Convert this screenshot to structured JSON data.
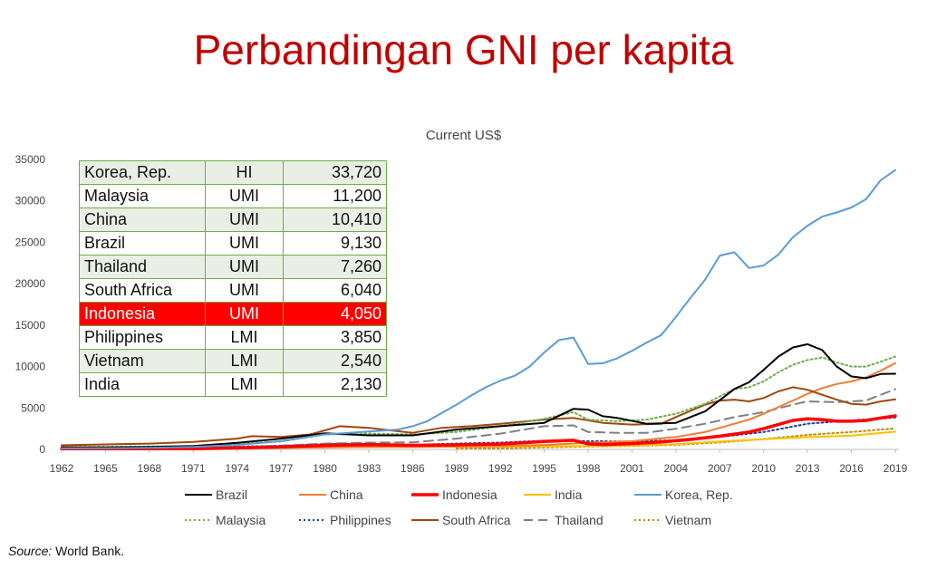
{
  "slide": {
    "title": "Perbandingan GNI per kapita",
    "source_label": "Source:",
    "source_text": " World Bank."
  },
  "table": [
    {
      "country": "Korea, Rep.",
      "group": "HI",
      "gni": "33,720",
      "highlight": false
    },
    {
      "country": "Malaysia",
      "group": "UMI",
      "gni": "11,200",
      "highlight": false
    },
    {
      "country": "China",
      "group": "UMI",
      "gni": "10,410",
      "highlight": false
    },
    {
      "country": "Brazil",
      "group": "UMI",
      "gni": "9,130",
      "highlight": false
    },
    {
      "country": "Thailand",
      "group": "UMI",
      "gni": "7,260",
      "highlight": false
    },
    {
      "country": "South Africa",
      "group": "UMI",
      "gni": "6,040",
      "highlight": false
    },
    {
      "country": "Indonesia",
      "group": "UMI",
      "gni": "4,050",
      "highlight": true
    },
    {
      "country": "Philippines",
      "group": "LMI",
      "gni": "3,850",
      "highlight": false
    },
    {
      "country": "Vietnam",
      "group": "LMI",
      "gni": "2,540",
      "highlight": false
    },
    {
      "country": "India",
      "group": "LMI",
      "gni": "2,130",
      "highlight": false
    }
  ],
  "chart_data": {
    "type": "line",
    "title": "Current US$",
    "xlabel": "",
    "ylabel": "",
    "xlim": [
      1962,
      2019
    ],
    "ylim": [
      0,
      35000
    ],
    "yticks": [
      0,
      5000,
      10000,
      15000,
      20000,
      25000,
      30000,
      35000
    ],
    "ytick_labels": [
      "0",
      "5000",
      "10000",
      "15000",
      "20000",
      "25000",
      "30000",
      "35000"
    ],
    "xtick_labels": [
      "1962",
      "1965",
      "1968",
      "1971",
      "1974",
      "1977",
      "1980",
      "1983",
      "1986",
      "1989",
      "1992",
      "1995",
      "1998",
      "2001",
      "2004",
      "2007",
      "2010",
      "2013",
      "2016",
      "2019"
    ],
    "grid": false,
    "legend_position": "bottom",
    "series": [
      {
        "name": "Brazil",
        "color": "#000000",
        "dash": "solid",
        "points": [
          [
            1962,
            260
          ],
          [
            1965,
            250
          ],
          [
            1968,
            300
          ],
          [
            1971,
            400
          ],
          [
            1974,
            800
          ],
          [
            1977,
            1300
          ],
          [
            1980,
            1950
          ],
          [
            1983,
            1700
          ],
          [
            1986,
            1700
          ],
          [
            1989,
            2400
          ],
          [
            1992,
            2800
          ],
          [
            1995,
            3200
          ],
          [
            1997,
            4900
          ],
          [
            1998,
            4800
          ],
          [
            1999,
            4000
          ],
          [
            2000,
            3800
          ],
          [
            2002,
            3100
          ],
          [
            2004,
            3200
          ],
          [
            2006,
            4600
          ],
          [
            2008,
            7300
          ],
          [
            2009,
            8100
          ],
          [
            2010,
            9600
          ],
          [
            2011,
            11200
          ],
          [
            2012,
            12300
          ],
          [
            2013,
            12700
          ],
          [
            2014,
            12000
          ],
          [
            2015,
            10000
          ],
          [
            2016,
            8800
          ],
          [
            2017,
            8600
          ],
          [
            2018,
            9100
          ],
          [
            2019,
            9130
          ]
        ]
      },
      {
        "name": "China",
        "color": "#ed7d31",
        "dash": "solid",
        "points": [
          [
            1962,
            70
          ],
          [
            1965,
            100
          ],
          [
            1968,
            100
          ],
          [
            1971,
            120
          ],
          [
            1974,
            160
          ],
          [
            1977,
            190
          ],
          [
            1980,
            220
          ],
          [
            1983,
            300
          ],
          [
            1986,
            300
          ],
          [
            1989,
            350
          ],
          [
            1992,
            390
          ],
          [
            1995,
            540
          ],
          [
            1998,
            800
          ],
          [
            2001,
            1000
          ],
          [
            2004,
            1500
          ],
          [
            2006,
            2100
          ],
          [
            2007,
            2600
          ],
          [
            2008,
            3100
          ],
          [
            2009,
            3600
          ],
          [
            2010,
            4300
          ],
          [
            2011,
            5100
          ],
          [
            2012,
            5900
          ],
          [
            2013,
            6700
          ],
          [
            2014,
            7400
          ],
          [
            2015,
            7900
          ],
          [
            2016,
            8200
          ],
          [
            2017,
            8700
          ],
          [
            2018,
            9500
          ],
          [
            2019,
            10410
          ]
        ]
      },
      {
        "name": "Indonesia",
        "color": "#ff0000",
        "dash": "solid",
        "width": 3.5,
        "points": [
          [
            1962,
            80
          ],
          [
            1965,
            90
          ],
          [
            1968,
            80
          ],
          [
            1971,
            90
          ],
          [
            1974,
            180
          ],
          [
            1977,
            290
          ],
          [
            1980,
            490
          ],
          [
            1983,
            570
          ],
          [
            1986,
            490
          ],
          [
            1989,
            550
          ],
          [
            1992,
            640
          ],
          [
            1995,
            950
          ],
          [
            1997,
            1100
          ],
          [
            1998,
            670
          ],
          [
            1999,
            590
          ],
          [
            2001,
            700
          ],
          [
            2003,
            900
          ],
          [
            2005,
            1200
          ],
          [
            2007,
            1600
          ],
          [
            2009,
            2100
          ],
          [
            2010,
            2500
          ],
          [
            2011,
            3000
          ],
          [
            2012,
            3500
          ],
          [
            2013,
            3700
          ],
          [
            2014,
            3600
          ],
          [
            2015,
            3400
          ],
          [
            2016,
            3400
          ],
          [
            2017,
            3500
          ],
          [
            2018,
            3800
          ],
          [
            2019,
            4050
          ]
        ]
      },
      {
        "name": "India",
        "color": "#ffc000",
        "dash": "solid",
        "points": [
          [
            1962,
            90
          ],
          [
            1965,
            110
          ],
          [
            1968,
            100
          ],
          [
            1971,
            110
          ],
          [
            1974,
            140
          ],
          [
            1977,
            170
          ],
          [
            1980,
            270
          ],
          [
            1983,
            280
          ],
          [
            1986,
            300
          ],
          [
            1989,
            330
          ],
          [
            1992,
            330
          ],
          [
            1995,
            370
          ],
          [
            1998,
            420
          ],
          [
            2001,
            460
          ],
          [
            2004,
            630
          ],
          [
            2007,
            960
          ],
          [
            2010,
            1220
          ],
          [
            2013,
            1480
          ],
          [
            2016,
            1670
          ],
          [
            2019,
            2130
          ]
        ]
      },
      {
        "name": "Korea, Rep.",
        "color": "#5b9bd5",
        "dash": "solid",
        "points": [
          [
            1962,
            120
          ],
          [
            1965,
            130
          ],
          [
            1968,
            200
          ],
          [
            1971,
            300
          ],
          [
            1974,
            540
          ],
          [
            1977,
            1000
          ],
          [
            1980,
            1800
          ],
          [
            1983,
            2150
          ],
          [
            1985,
            2400
          ],
          [
            1986,
            2800
          ],
          [
            1987,
            3400
          ],
          [
            1988,
            4400
          ],
          [
            1989,
            5400
          ],
          [
            1990,
            6500
          ],
          [
            1991,
            7500
          ],
          [
            1992,
            8300
          ],
          [
            1993,
            8900
          ],
          [
            1994,
            10000
          ],
          [
            1995,
            11700
          ],
          [
            1996,
            13200
          ],
          [
            1997,
            13500
          ],
          [
            1998,
            10300
          ],
          [
            1999,
            10400
          ],
          [
            2000,
            11000
          ],
          [
            2001,
            11900
          ],
          [
            2002,
            12900
          ],
          [
            2003,
            13800
          ],
          [
            2004,
            16000
          ],
          [
            2005,
            18300
          ],
          [
            2006,
            20500
          ],
          [
            2007,
            23400
          ],
          [
            2008,
            23800
          ],
          [
            2009,
            21900
          ],
          [
            2010,
            22200
          ],
          [
            2011,
            23500
          ],
          [
            2012,
            25600
          ],
          [
            2013,
            27000
          ],
          [
            2014,
            28100
          ],
          [
            2015,
            28600
          ],
          [
            2016,
            29200
          ],
          [
            2017,
            30200
          ],
          [
            2018,
            32500
          ],
          [
            2019,
            33720
          ]
        ]
      },
      {
        "name": "Malaysia",
        "color": "#70ad47",
        "dash": "2,3",
        "points": [
          [
            1962,
            270
          ],
          [
            1965,
            320
          ],
          [
            1968,
            350
          ],
          [
            1971,
            400
          ],
          [
            1974,
            650
          ],
          [
            1977,
            950
          ],
          [
            1980,
            1800
          ],
          [
            1983,
            1900
          ],
          [
            1986,
            1800
          ],
          [
            1989,
            2100
          ],
          [
            1992,
            2800
          ],
          [
            1995,
            3700
          ],
          [
            1997,
            4500
          ],
          [
            1998,
            3600
          ],
          [
            2000,
            3400
          ],
          [
            2002,
            3600
          ],
          [
            2004,
            4300
          ],
          [
            2006,
            5500
          ],
          [
            2008,
            7300
          ],
          [
            2009,
            7500
          ],
          [
            2010,
            8200
          ],
          [
            2011,
            9300
          ],
          [
            2012,
            10200
          ],
          [
            2013,
            10800
          ],
          [
            2014,
            11100
          ],
          [
            2015,
            10500
          ],
          [
            2016,
            10000
          ],
          [
            2017,
            10000
          ],
          [
            2018,
            10600
          ],
          [
            2019,
            11200
          ]
        ]
      },
      {
        "name": "Philippines",
        "color": "#1f3d99",
        "dash": "2,3",
        "points": [
          [
            1962,
            160
          ],
          [
            1965,
            180
          ],
          [
            1968,
            200
          ],
          [
            1971,
            220
          ],
          [
            1974,
            330
          ],
          [
            1977,
            440
          ],
          [
            1980,
            650
          ],
          [
            1983,
            700
          ],
          [
            1986,
            560
          ],
          [
            1989,
            700
          ],
          [
            1992,
            820
          ],
          [
            1995,
            1050
          ],
          [
            1998,
            1000
          ],
          [
            2001,
            950
          ],
          [
            2004,
            1100
          ],
          [
            2007,
            1500
          ],
          [
            2010,
            2100
          ],
          [
            2013,
            3100
          ],
          [
            2016,
            3500
          ],
          [
            2019,
            3850
          ]
        ]
      },
      {
        "name": "South Africa",
        "color": "#9e480e",
        "dash": "solid",
        "points": [
          [
            1962,
            500
          ],
          [
            1965,
            600
          ],
          [
            1968,
            700
          ],
          [
            1971,
            900
          ],
          [
            1974,
            1300
          ],
          [
            1975,
            1600
          ],
          [
            1977,
            1500
          ],
          [
            1979,
            1800
          ],
          [
            1980,
            2300
          ],
          [
            1981,
            2800
          ],
          [
            1983,
            2600
          ],
          [
            1986,
            2000
          ],
          [
            1988,
            2600
          ],
          [
            1990,
            2800
          ],
          [
            1992,
            3100
          ],
          [
            1995,
            3600
          ],
          [
            1997,
            3800
          ],
          [
            1999,
            3200
          ],
          [
            2001,
            3000
          ],
          [
            2003,
            3100
          ],
          [
            2004,
            3900
          ],
          [
            2006,
            5400
          ],
          [
            2007,
            5900
          ],
          [
            2008,
            6000
          ],
          [
            2009,
            5800
          ],
          [
            2010,
            6200
          ],
          [
            2011,
            7000
          ],
          [
            2012,
            7500
          ],
          [
            2013,
            7200
          ],
          [
            2014,
            6600
          ],
          [
            2015,
            6000
          ],
          [
            2016,
            5500
          ],
          [
            2017,
            5400
          ],
          [
            2018,
            5800
          ],
          [
            2019,
            6040
          ]
        ]
      },
      {
        "name": "Thailand",
        "color": "#7f7f7f",
        "dash": "10,6",
        "points": [
          [
            1962,
            110
          ],
          [
            1965,
            130
          ],
          [
            1968,
            180
          ],
          [
            1971,
            200
          ],
          [
            1974,
            300
          ],
          [
            1977,
            450
          ],
          [
            1980,
            700
          ],
          [
            1983,
            820
          ],
          [
            1986,
            850
          ],
          [
            1989,
            1300
          ],
          [
            1992,
            1900
          ],
          [
            1995,
            2800
          ],
          [
            1997,
            2900
          ],
          [
            1998,
            2100
          ],
          [
            2000,
            2000
          ],
          [
            2002,
            2000
          ],
          [
            2004,
            2500
          ],
          [
            2006,
            3100
          ],
          [
            2008,
            3900
          ],
          [
            2010,
            4500
          ],
          [
            2012,
            5400
          ],
          [
            2013,
            5800
          ],
          [
            2015,
            5700
          ],
          [
            2017,
            5900
          ],
          [
            2018,
            6600
          ],
          [
            2019,
            7260
          ]
        ]
      },
      {
        "name": "Vietnam",
        "color": "#bf8f00",
        "dash": "2,3",
        "points": [
          [
            1989,
            130
          ],
          [
            1992,
            130
          ],
          [
            1995,
            250
          ],
          [
            1998,
            350
          ],
          [
            2001,
            420
          ],
          [
            2004,
            550
          ],
          [
            2007,
            840
          ],
          [
            2010,
            1250
          ],
          [
            2013,
            1750
          ],
          [
            2016,
            2100
          ],
          [
            2019,
            2540
          ]
        ]
      }
    ]
  }
}
